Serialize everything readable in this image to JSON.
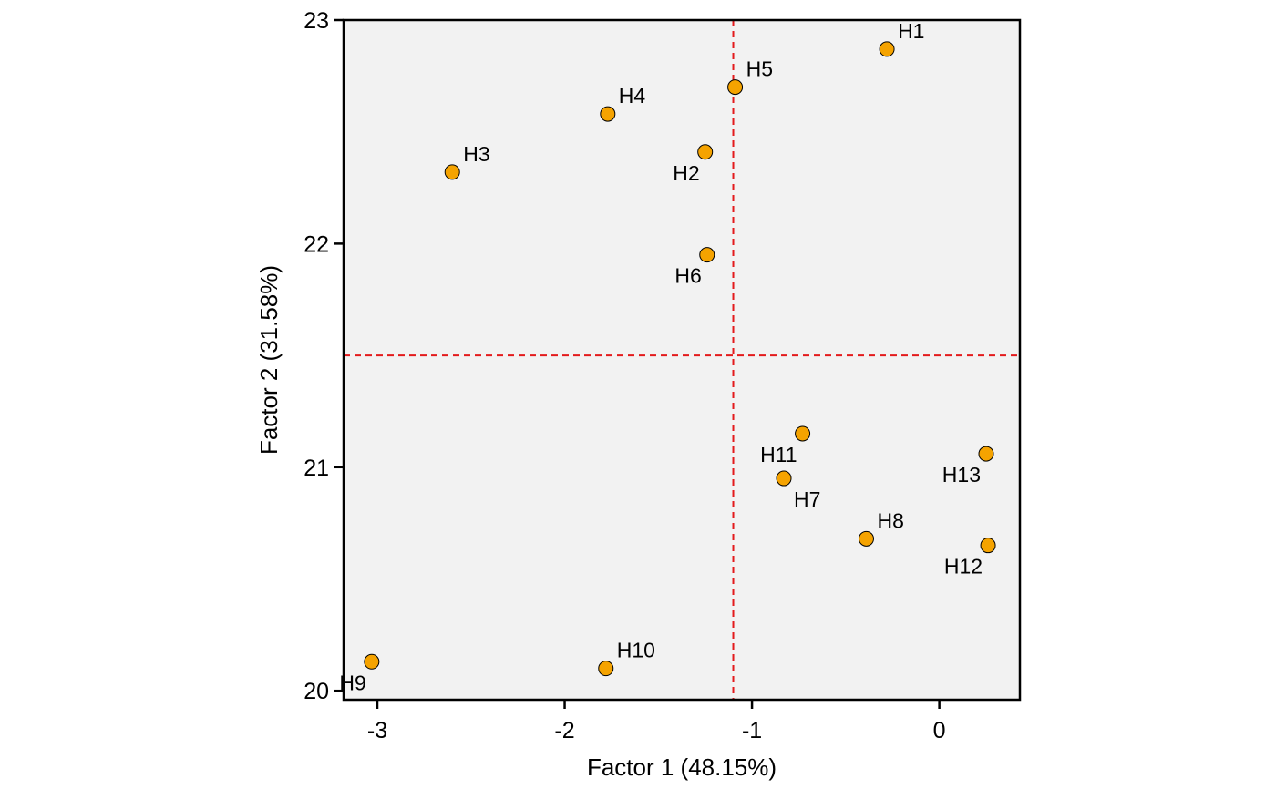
{
  "chart_data": {
    "type": "scatter",
    "title": "",
    "xlabel": "Factor 1 (48.15%)",
    "ylabel": "Factor 2 (31.58%)",
    "xlim": [
      -3.18,
      0.43
    ],
    "ylim": [
      19.96,
      23.0
    ],
    "xticks": [
      -3,
      -2,
      -1,
      0
    ],
    "xtick_labels": [
      "-3",
      "-2",
      "-1",
      "0"
    ],
    "yticks": [
      20,
      21,
      22,
      23
    ],
    "ytick_labels": [
      "20",
      "21",
      "22",
      "23"
    ],
    "reference_lines": {
      "x": -1.1,
      "y": 21.5
    },
    "grid": false,
    "legend": "none",
    "colors": {
      "panel_background": "#f2f2f2",
      "point_fill": "#f5a300",
      "point_stroke": "#000000",
      "reference_line": "#e31a1c"
    },
    "points": [
      {
        "label": "H1",
        "x": -0.28,
        "y": 22.87,
        "label_pos": "upper-right"
      },
      {
        "label": "H2",
        "x": -1.25,
        "y": 22.41,
        "label_pos": "lower-left"
      },
      {
        "label": "H3",
        "x": -2.6,
        "y": 22.32,
        "label_pos": "upper-right"
      },
      {
        "label": "H4",
        "x": -1.77,
        "y": 22.58,
        "label_pos": "upper-right"
      },
      {
        "label": "H5",
        "x": -1.09,
        "y": 22.7,
        "label_pos": "upper-right"
      },
      {
        "label": "H6",
        "x": -1.24,
        "y": 21.95,
        "label_pos": "lower-left"
      },
      {
        "label": "H7",
        "x": -0.83,
        "y": 20.95,
        "label_pos": "lower-right"
      },
      {
        "label": "H8",
        "x": -0.39,
        "y": 20.68,
        "label_pos": "upper-right"
      },
      {
        "label": "H9",
        "x": -3.03,
        "y": 20.13,
        "label_pos": "lower-left"
      },
      {
        "label": "H10",
        "x": -1.78,
        "y": 20.1,
        "label_pos": "upper-right"
      },
      {
        "label": "H11",
        "x": -0.73,
        "y": 21.15,
        "label_pos": "lower-left"
      },
      {
        "label": "H12",
        "x": 0.26,
        "y": 20.65,
        "label_pos": "lower-left"
      },
      {
        "label": "H13",
        "x": 0.25,
        "y": 21.06,
        "label_pos": "lower-left"
      }
    ]
  }
}
